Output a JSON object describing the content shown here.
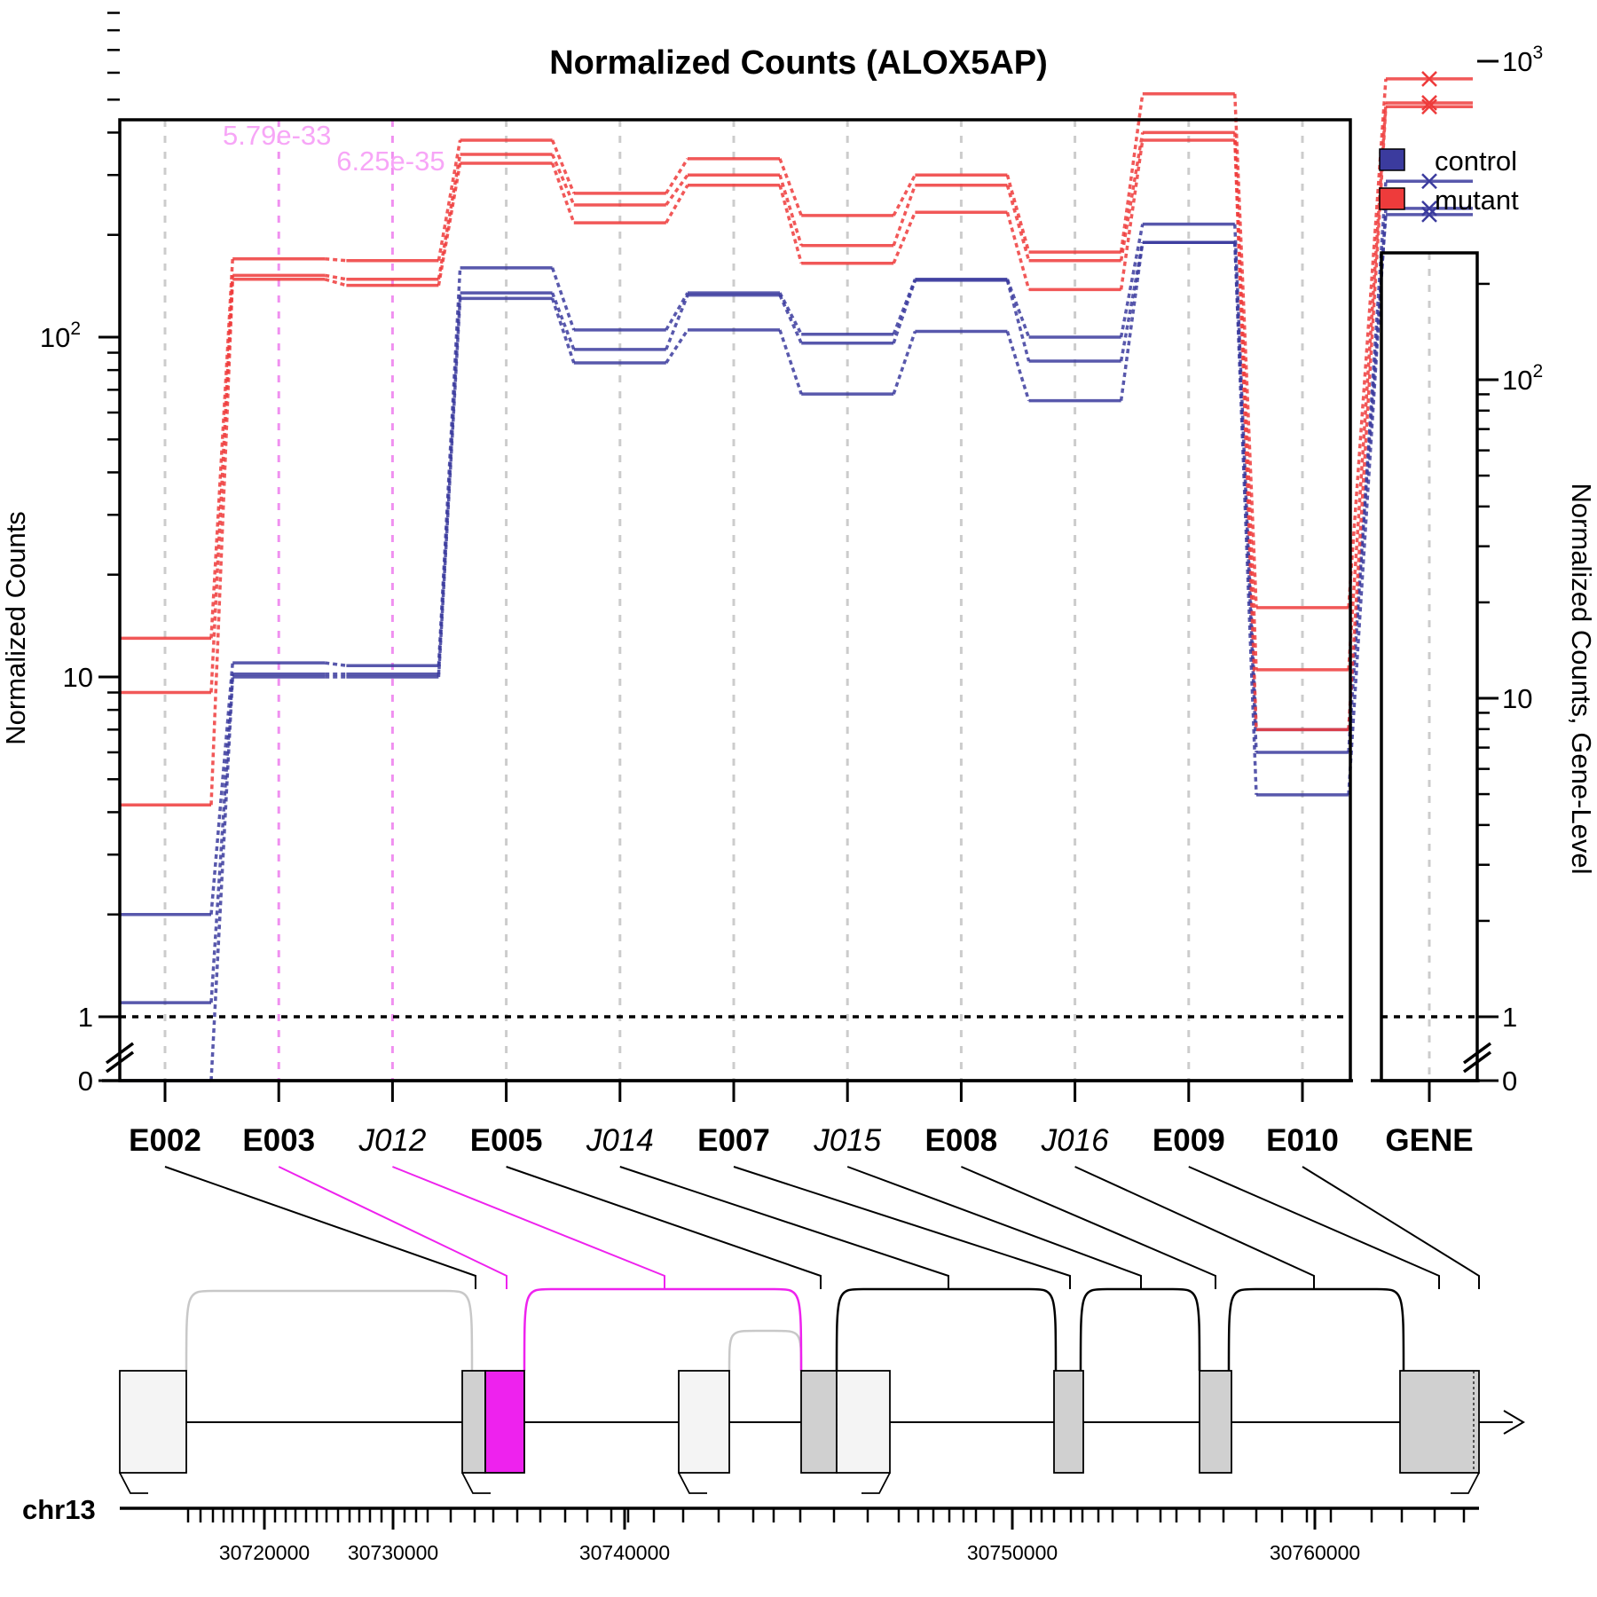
{
  "chart_data": {
    "type": "line",
    "title": "Normalized Counts (ALOX5AP)",
    "ylabel": "Normalized Counts",
    "ylabel_right": "Normalized Counts, Gene-Level",
    "scale": "log (pseudocount axis with 0 break)",
    "categories": [
      {
        "label": "E002",
        "kind": "exon",
        "highlight": false
      },
      {
        "label": "E003",
        "kind": "exon",
        "highlight": true
      },
      {
        "label": "J012",
        "kind": "junction",
        "highlight": true
      },
      {
        "label": "E005",
        "kind": "exon",
        "highlight": false
      },
      {
        "label": "J014",
        "kind": "junction",
        "highlight": false
      },
      {
        "label": "E007",
        "kind": "exon",
        "highlight": false
      },
      {
        "label": "J015",
        "kind": "junction",
        "highlight": false
      },
      {
        "label": "E008",
        "kind": "exon",
        "highlight": false
      },
      {
        "label": "J016",
        "kind": "junction",
        "highlight": false
      },
      {
        "label": "E009",
        "kind": "exon",
        "highlight": false
      },
      {
        "label": "E010",
        "kind": "exon",
        "highlight": false
      }
    ],
    "gene_label": "GENE",
    "pvalues": [
      {
        "category": 1,
        "text": "5.79e-33"
      },
      {
        "category": 2,
        "text": "6.25e-35"
      }
    ],
    "left_ticks": [
      {
        "value": 0,
        "label": "0"
      },
      {
        "value": 1,
        "label": "1"
      },
      {
        "value": 10,
        "label": "10"
      },
      {
        "value": 100,
        "label": "10",
        "exp": "2"
      }
    ],
    "right_ticks": [
      {
        "value": 0,
        "label": "0"
      },
      {
        "value": 1,
        "label": "1"
      },
      {
        "value": 10,
        "label": "10"
      },
      {
        "value": 100,
        "label": "10",
        "exp": "2"
      },
      {
        "value": 1000,
        "label": "10",
        "exp": "3"
      }
    ],
    "legend": {
      "position": "top-right"
    },
    "series": [
      {
        "name": "control",
        "group": "control",
        "color": "#3b3b9e",
        "values": [
          2.0,
          11.0,
          10.8,
          160,
          105,
          135,
          102,
          148,
          100,
          215,
          6.0
        ],
        "gene": 420
      },
      {
        "name": "control",
        "group": "control",
        "color": "#3b3b9e",
        "values": [
          1.1,
          10.2,
          10.2,
          135,
          92,
          133,
          96,
          147,
          85,
          190,
          4.5
        ],
        "gene": 345
      },
      {
        "name": "control",
        "group": "control",
        "color": "#3b3b9e",
        "values": [
          0,
          10.0,
          10.0,
          130,
          84,
          105,
          68,
          104,
          65,
          190,
          7.0
        ],
        "gene": 330
      },
      {
        "name": "mutant",
        "group": "mutant",
        "color": "#ee3b3b",
        "values": [
          13.0,
          170,
          168,
          380,
          265,
          335,
          228,
          300,
          178,
          520,
          16.0
        ],
        "gene": 880
      },
      {
        "name": "mutant",
        "group": "mutant",
        "color": "#ee3b3b",
        "values": [
          9.0,
          152,
          148,
          345,
          245,
          300,
          186,
          280,
          168,
          400,
          10.5
        ],
        "gene": 740
      },
      {
        "name": "mutant",
        "group": "mutant",
        "color": "#ee3b3b",
        "values": [
          4.2,
          148,
          142,
          325,
          217,
          280,
          165,
          233,
          138,
          380,
          7.0
        ],
        "gene": 720
      }
    ],
    "gene_model": {
      "chromosome": "chr13",
      "ticks": [
        "30720000",
        "30730000",
        "30740000",
        "30750000",
        "30760000"
      ]
    }
  }
}
